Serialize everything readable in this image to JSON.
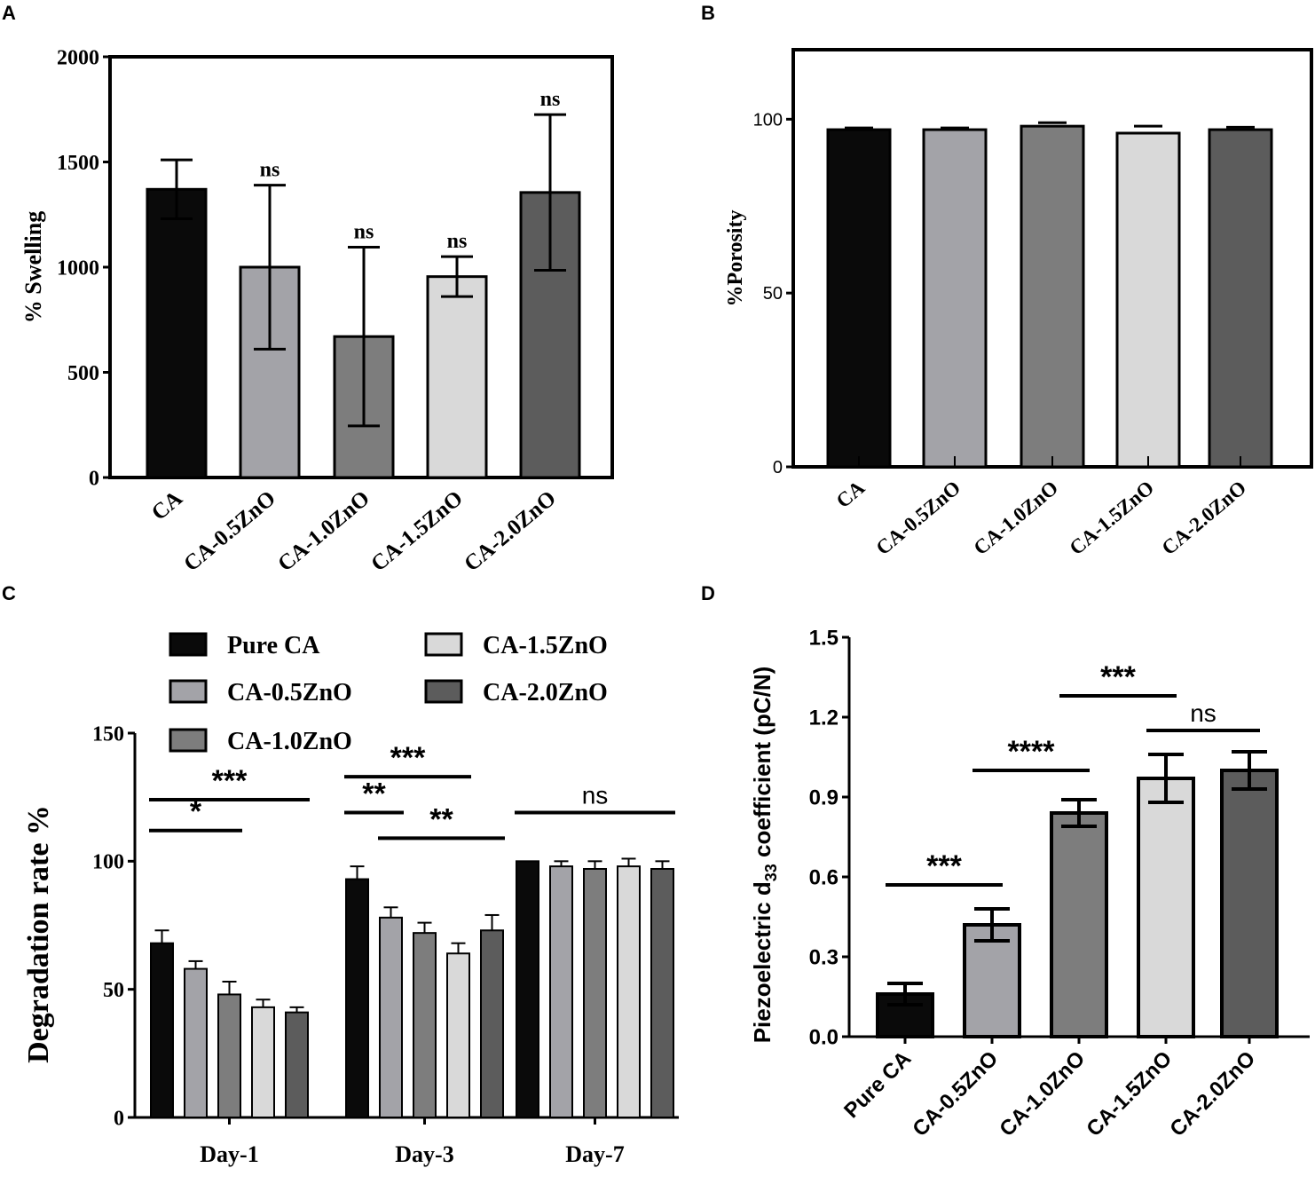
{
  "figure": {
    "panel_labels": [
      "A",
      "B",
      "C",
      "D"
    ]
  },
  "colors": {
    "CA": "#0a0a0a",
    "CA-0.5ZnO": "#a3a3a8",
    "CA-1.0ZnO": "#7d7d7d",
    "CA-1.5ZnO": "#d9d9d9",
    "CA-2.0ZnO": "#5c5c5c"
  },
  "chart_data": [
    {
      "panel": "A",
      "type": "bar",
      "title": "",
      "xlabel": "",
      "ylabel": "% Swelling",
      "ylim": [
        0,
        2000
      ],
      "yticks": [
        0,
        500,
        1000,
        1500,
        2000
      ],
      "categories": [
        "CA",
        "CA-0.5ZnO",
        "CA-1.0ZnO",
        "CA-1.5ZnO",
        "CA-2.0ZnO"
      ],
      "values": [
        1370,
        1000,
        670,
        955,
        1355
      ],
      "errors": [
        140,
        390,
        425,
        95,
        370
      ],
      "annotations": [
        "",
        "ns",
        "ns",
        "ns",
        "ns"
      ]
    },
    {
      "panel": "B",
      "type": "bar",
      "title": "",
      "xlabel": "",
      "ylabel": "%Porosity",
      "ylim": [
        0,
        120
      ],
      "yticks": [
        0,
        50,
        100
      ],
      "categories": [
        "CA",
        "CA-0.5ZnO",
        "CA-1.0ZnO",
        "CA-1.5ZnO",
        "CA-2.0ZnO"
      ],
      "values": [
        97,
        97,
        98,
        96,
        97
      ],
      "errors": [
        0.5,
        0.5,
        1,
        2,
        0.7
      ]
    },
    {
      "panel": "C",
      "type": "bar",
      "title": "",
      "xlabel": "",
      "ylabel": "Degradation rate %",
      "ylim": [
        0,
        150
      ],
      "yticks": [
        0,
        50,
        100,
        150
      ],
      "categories": [
        "Day-1",
        "Day-3",
        "Day-7"
      ],
      "legend": [
        "Pure CA",
        "CA-0.5ZnO",
        "CA-1.0ZnO",
        "CA-1.5ZnO",
        "CA-2.0ZnO"
      ],
      "series": [
        {
          "name": "Pure CA",
          "values": [
            68,
            93,
            100
          ],
          "errors": [
            5,
            5,
            0
          ]
        },
        {
          "name": "CA-0.5ZnO",
          "values": [
            58,
            78,
            98
          ],
          "errors": [
            3,
            4,
            2
          ]
        },
        {
          "name": "CA-1.0ZnO",
          "values": [
            48,
            72,
            97
          ],
          "errors": [
            5,
            4,
            3
          ]
        },
        {
          "name": "CA-1.5ZnO",
          "values": [
            43,
            64,
            98
          ],
          "errors": [
            3,
            4,
            3
          ]
        },
        {
          "name": "CA-2.0ZnO",
          "values": [
            41,
            73,
            97
          ],
          "errors": [
            2,
            6,
            3
          ]
        }
      ],
      "significance": [
        {
          "label": "*",
          "group": "Day-1",
          "from": 0,
          "to": 2,
          "y": 112
        },
        {
          "label": "***",
          "group": "Day-1",
          "from": 0,
          "to": 4,
          "y": 124
        },
        {
          "label": "**",
          "group": "Day-3",
          "from": 0,
          "to": 1,
          "y": 119
        },
        {
          "label": "**",
          "group": "Day-3",
          "from": 1,
          "to": 4,
          "y": 109
        },
        {
          "label": "***",
          "group": "Day-3",
          "from": 0,
          "to": 3,
          "y": 133
        },
        {
          "label": "ns",
          "group": "Day-7",
          "from": 0,
          "to": 4,
          "y": 119
        }
      ]
    },
    {
      "panel": "D",
      "type": "bar",
      "title": "",
      "xlabel": "",
      "ylabel_prefix": "Piezoelectric d",
      "ylabel_sub": "33",
      "ylabel_suffix": " coefficient (pC/N)",
      "ylim": [
        0,
        1.5
      ],
      "yticks": [
        "0.0",
        "0.3",
        "0.6",
        "0.9",
        "1.2",
        "1.5"
      ],
      "categories": [
        "Pure CA",
        "CA-0.5ZnO",
        "CA-1.0ZnO",
        "CA-1.5ZnO",
        "CA-2.0ZnO"
      ],
      "values": [
        0.16,
        0.42,
        0.84,
        0.97,
        1.0
      ],
      "errors": [
        0.04,
        0.06,
        0.05,
        0.09,
        0.07
      ],
      "significance": [
        {
          "label": "***",
          "from": 0,
          "to": 1,
          "y": 0.57
        },
        {
          "label": "****",
          "from": 1,
          "to": 2,
          "y": 1.0
        },
        {
          "label": "***",
          "from": 2,
          "to": 3,
          "y": 1.28
        },
        {
          "label": "ns",
          "from": 3,
          "to": 4,
          "y": 1.15
        }
      ]
    }
  ]
}
